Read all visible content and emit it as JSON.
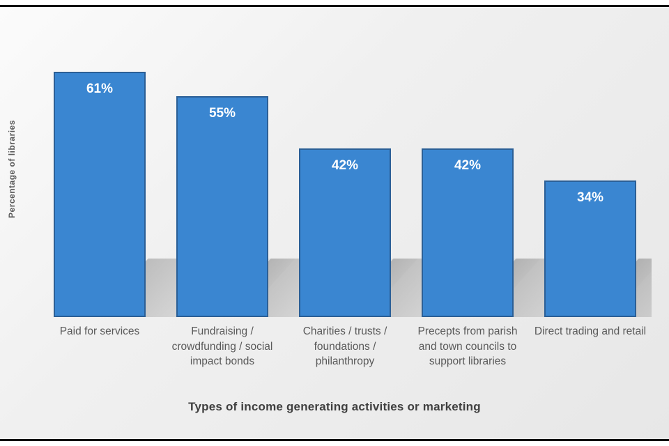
{
  "chart_data": {
    "type": "bar",
    "title": "",
    "categories": [
      "Paid for services",
      "Fundraising / crowdfunding / social impact bonds",
      "Charities / trusts / foundations / philanthropy",
      "Precepts from parish and town councils to support libraries",
      "Direct trading and retail"
    ],
    "values": [
      61,
      55,
      42,
      42,
      34
    ],
    "data_labels": [
      "61%",
      "55%",
      "42%",
      "42%",
      "34%"
    ],
    "xlabel": "Types of income generating activities or marketing",
    "ylabel": "Percentage of libraries",
    "ylim": [
      0,
      70
    ],
    "grid": false,
    "legend_position": "none",
    "bar_color": "#3a86d1",
    "bar_border_color": "#2b5f96",
    "data_label_color": "#ffffff",
    "axis_title_color": "#595959",
    "category_label_color": "#595959"
  }
}
